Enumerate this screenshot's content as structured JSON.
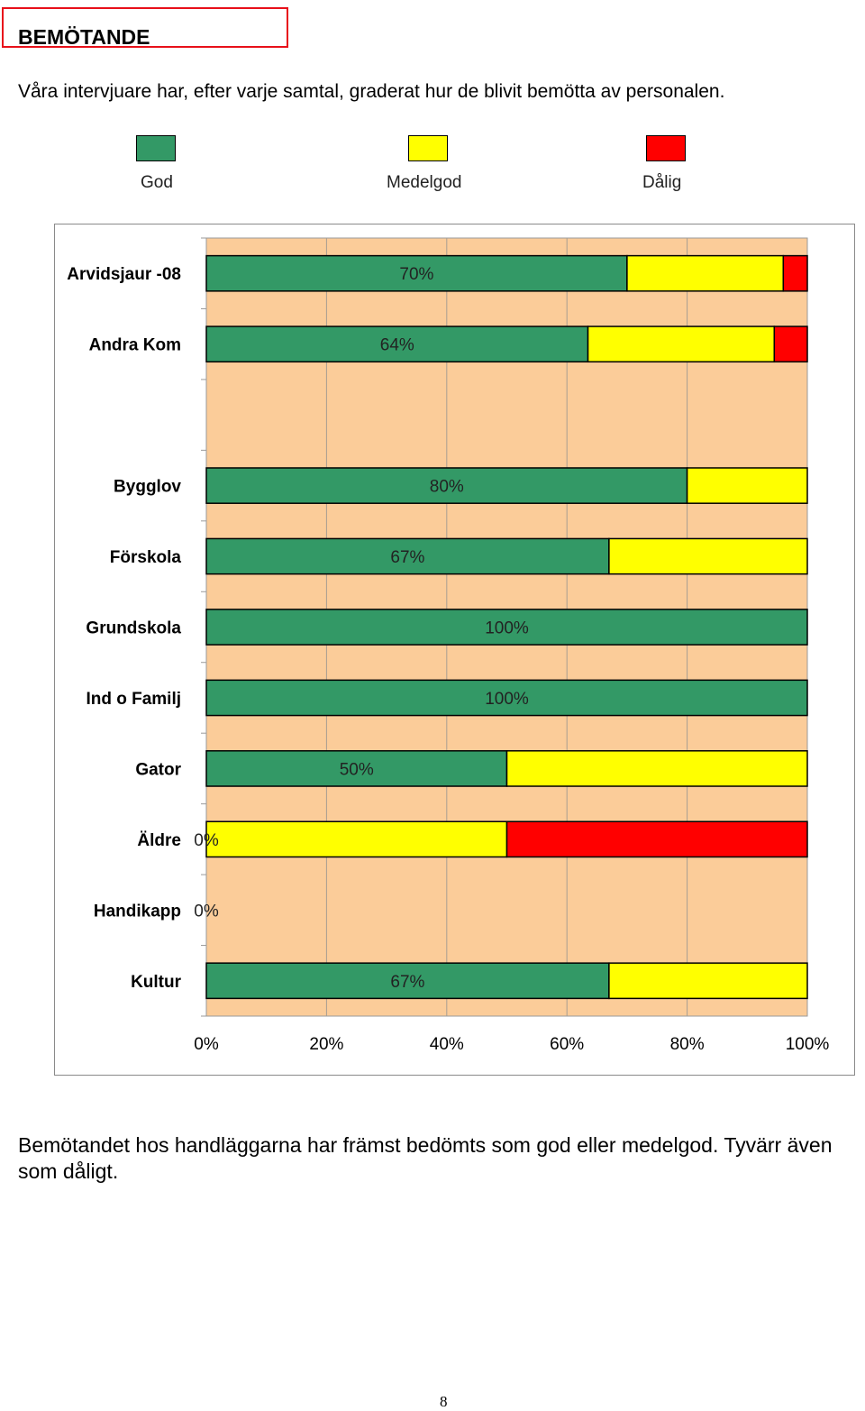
{
  "page": {
    "heading": "BEMÖTANDE",
    "intro": "Våra intervjuare har, efter varje samtal, graderat hur de blivit bemötta av personalen.",
    "summary": "Bemötandet hos handläggarna har främst bedömts som god eller medelgod. Tyvärr även som dåligt.",
    "page_number": "8"
  },
  "legend": [
    {
      "label": "God",
      "color": "#339966"
    },
    {
      "label": "Medelgod",
      "color": "#ffff00"
    },
    {
      "label": "Dålig",
      "color": "#ff0000"
    }
  ],
  "chart_data": {
    "type": "bar",
    "orientation": "horizontal",
    "stacked": "percent",
    "plot_background": "#fbcc99",
    "categories": [
      "Arvidsjaur -08",
      "Andra Kom",
      "",
      "Bygglov",
      "Förskola",
      "Grundskola",
      "Ind o Familj",
      "Gator",
      "Äldre",
      "Handikapp",
      "Kultur"
    ],
    "series": [
      {
        "name": "God",
        "color": "#339966",
        "values": [
          70,
          63.5,
          0,
          80,
          67,
          100,
          100,
          50,
          0,
          0,
          67
        ]
      },
      {
        "name": "Medelgod",
        "color": "#ffff00",
        "values": [
          26,
          31,
          0,
          20,
          33,
          0,
          0,
          50,
          50,
          0,
          33
        ]
      },
      {
        "name": "Dålig",
        "color": "#ff0000",
        "values": [
          4,
          5.5,
          0,
          0,
          0,
          0,
          0,
          0,
          50,
          0,
          0
        ]
      }
    ],
    "data_labels": [
      "70%",
      "64%",
      "",
      "80%",
      "67%",
      "100%",
      "100%",
      "50%",
      "0%",
      "0%",
      "67%"
    ],
    "xticks": [
      "0%",
      "20%",
      "40%",
      "60%",
      "80%",
      "100%"
    ],
    "xlim": [
      0,
      100
    ],
    "grid": true,
    "legend_position": "top"
  }
}
